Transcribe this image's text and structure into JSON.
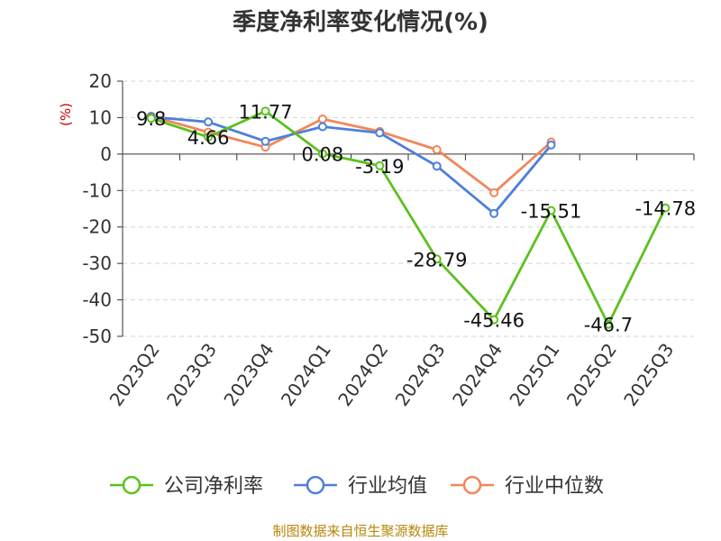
{
  "chart_data": {
    "type": "line",
    "title": "季度净利率变化情况(%)",
    "ylabel": "(%)",
    "categories": [
      "2023Q2",
      "2023Q3",
      "2023Q4",
      "2024Q1",
      "2024Q2",
      "2024Q3",
      "2024Q4",
      "2025Q1",
      "2025Q2",
      "2025Q3"
    ],
    "ylim": [
      -50,
      20
    ],
    "yticks": [
      20,
      10,
      0,
      -10,
      -20,
      -30,
      -40,
      -50
    ],
    "series": [
      {
        "name": "公司净利率",
        "color": "#5cc11e",
        "values": [
          9.8,
          4.66,
          11.77,
          0.08,
          -3.19,
          -28.79,
          -45.46,
          -15.51,
          -46.7,
          -14.78
        ]
      },
      {
        "name": "行业均值",
        "color": "#4f7fdb",
        "values": [
          10.2,
          8.8,
          3.5,
          7.5,
          5.8,
          -3.3,
          -16.3,
          2.5,
          null,
          null
        ]
      },
      {
        "name": "行业中位数",
        "color": "#f0875a",
        "values": [
          10.4,
          6.0,
          1.9,
          9.6,
          6.2,
          1.2,
          -10.6,
          3.3,
          null,
          null
        ]
      }
    ],
    "data_labels": [
      "9.8",
      "4.66",
      "11.77",
      "0.08",
      "-3.19",
      "-28.79",
      "-45.46",
      "-15.51",
      "-46.7",
      "-14.78"
    ],
    "legend_position": "bottom",
    "grid": "horizontal-dashed"
  },
  "source": "制图数据来自恒生聚源数据库"
}
